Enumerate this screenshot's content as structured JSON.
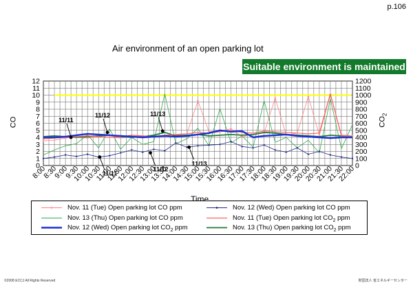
{
  "page_number": "p.106",
  "banner": "Suitable environment is maintained",
  "footer": {
    "copyright": "©2008 ECCJ All Rights Reserved",
    "org": "財団法人 省エネルギーセンター"
  },
  "chart_data": {
    "type": "line",
    "title": "Air environment of an open parking lot",
    "xlabel": "Time",
    "ylabel_left": "CO",
    "ylabel_right": "CO2",
    "ylim_left": [
      0,
      12
    ],
    "ylim_right": [
      0,
      1200
    ],
    "yticks_left": [
      "0",
      "1",
      "2",
      "3",
      "4",
      "5",
      "6",
      "7",
      "8",
      "9",
      "10",
      "11",
      "12"
    ],
    "yticks_right": [
      "0",
      "100",
      "200",
      "300",
      "400",
      "500",
      "600",
      "700",
      "800",
      "900",
      "1000",
      "1100",
      "1200"
    ],
    "categories": [
      "8:00",
      "8:30",
      "9:00",
      "9:30",
      "10:00",
      "10:30",
      "11:00",
      "11:30",
      "12:00",
      "12:30",
      "13:00",
      "13:30",
      "14:00",
      "14:30",
      "15:00",
      "15:30",
      "16:00",
      "16:30",
      "17:00",
      "17:30",
      "18:00",
      "18:30",
      "19:00",
      "19:30",
      "20:00",
      "20:30",
      "21:00",
      "21:30",
      "22:00"
    ],
    "reference_line": {
      "axis": "right",
      "value": 1000,
      "color": "#ffff00"
    },
    "annotations": [
      {
        "text": "11/11",
        "x": 2.5,
        "y": 4.0,
        "pos": "above"
      },
      {
        "text": "11/12",
        "x": 5.8,
        "y": 4.7,
        "pos": "above"
      },
      {
        "text": "11/13",
        "x": 10.8,
        "y": 4.9,
        "pos": "above"
      },
      {
        "text": "11/11",
        "x": 5.1,
        "y": 1.2,
        "pos": "below"
      },
      {
        "text": "11/12",
        "x": 9.7,
        "y": 1.8,
        "pos": "below"
      },
      {
        "text": "11/13",
        "x": 13.2,
        "y": 2.6,
        "pos": "below"
      }
    ],
    "series": [
      {
        "name": "Nov. 11 (Tue) Open parking lot CO ppm",
        "legend_html": "Nov. 11 (Tue) Open parking lot CO ppm",
        "axis": "left",
        "color": "#ff8080",
        "width": 0.8,
        "marker": "plus",
        "legend_col": 0,
        "legend_row": 0,
        "x": [
          0,
          1,
          2,
          3,
          4,
          5,
          6,
          7,
          8,
          9,
          10,
          11,
          12,
          13,
          14,
          15,
          16,
          17,
          18,
          19,
          20,
          21,
          22,
          23,
          24,
          25,
          26,
          27,
          28
        ],
        "values": [
          3.5,
          3.6,
          3.9,
          4.0,
          3.9,
          4.1,
          4.0,
          3.9,
          4.1,
          4.2,
          4.0,
          4.1,
          4.3,
          4.5,
          9.2,
          4.8,
          4.9,
          5.2,
          4.1,
          4.4,
          4.6,
          9.6,
          4.3,
          4.6,
          9.8,
          4.3,
          10.1,
          4.4,
          4.2
        ]
      },
      {
        "name": "Nov. 12 (Wed) Open parking lot CO ppm",
        "legend_html": "Nov. 12 (Wed) Open parking lot CO ppm",
        "axis": "left",
        "color": "#1f2a8a",
        "width": 0.8,
        "marker": "dot",
        "legend_col": 1,
        "legend_row": 0,
        "x": [
          0,
          1,
          2,
          3,
          4,
          5,
          6,
          7,
          8,
          9,
          10,
          11,
          12,
          13,
          14,
          15,
          16,
          17,
          18,
          19,
          20,
          21,
          22,
          23,
          24,
          25,
          26,
          27,
          28
        ],
        "values": [
          1.0,
          1.2,
          1.5,
          1.3,
          1.6,
          1.2,
          1.4,
          1.8,
          2.2,
          1.9,
          2.3,
          2.1,
          3.2,
          2.6,
          2.8,
          2.9,
          3.0,
          3.4,
          2.7,
          2.5,
          2.9,
          2.2,
          1.9,
          2.5,
          1.6,
          2.0,
          1.5,
          1.2,
          1.0
        ]
      },
      {
        "name": "Nov. 13 (Thu) Open parking lot CO ppm",
        "legend_html": "Nov. 13 (Thu) Open parking lot CO ppm",
        "axis": "left",
        "color": "#2ea84a",
        "width": 0.8,
        "marker": "none",
        "legend_col": 0,
        "legend_row": 1,
        "x": [
          0,
          1,
          2,
          3,
          4,
          5,
          6,
          7,
          8,
          9,
          10,
          11,
          12,
          13,
          14,
          15,
          16,
          17,
          18,
          19,
          20,
          21,
          22,
          23,
          24,
          25,
          26,
          27,
          28
        ],
        "values": [
          1.5,
          2.2,
          2.8,
          3.1,
          4.4,
          2.5,
          5.2,
          2.3,
          4.0,
          3.0,
          3.4,
          10.2,
          3.1,
          3.8,
          5.3,
          2.8,
          8.1,
          3.2,
          4.2,
          2.6,
          9.2,
          3.3,
          4.0,
          2.5,
          3.6,
          1.8,
          9.5,
          2.4,
          5.8
        ]
      },
      {
        "name": "Nov. 11 (Tue) Open parking lot CO2 ppm",
        "legend_html": "Nov. 11 (Tue) Open parking lot CO<sub>2</sub> ppm",
        "axis": "right",
        "color": "#ff6060",
        "width": 1.2,
        "marker": "none",
        "legend_col": 1,
        "legend_row": 1,
        "x": [
          0,
          1,
          2,
          3,
          4,
          5,
          6,
          7,
          8,
          9,
          10,
          11,
          12,
          13,
          14,
          15,
          16,
          17,
          18,
          19,
          20,
          21,
          22,
          23,
          24,
          25,
          26,
          27,
          28
        ],
        "values": [
          380,
          390,
          400,
          410,
          420,
          410,
          400,
          410,
          430,
          420,
          410,
          430,
          440,
          450,
          470,
          460,
          480,
          500,
          470,
          460,
          490,
          480,
          470,
          460,
          450,
          460,
          1020,
          420,
          410
        ]
      },
      {
        "name": "Nov. 12 (Wed) Open parking lot CO2 ppm",
        "legend_html": "Nov. 12 (Wed) Open parking lot CO<sub>2</sub> ppm",
        "axis": "right",
        "color": "#1a2fd0",
        "width": 2.4,
        "marker": "none",
        "legend_col": 0,
        "legend_row": 2,
        "x": [
          0,
          1,
          2,
          3,
          4,
          5,
          6,
          7,
          8,
          9,
          10,
          11,
          12,
          13,
          14,
          15,
          16,
          17,
          18,
          19,
          20,
          21,
          22,
          23,
          24,
          25,
          26,
          27,
          28
        ],
        "values": [
          400,
          400,
          410,
          430,
          450,
          440,
          430,
          420,
          410,
          400,
          410,
          420,
          410,
          420,
          440,
          460,
          500,
          480,
          490,
          400,
          420,
          430,
          440,
          420,
          410,
          400,
          390,
          400,
          400
        ]
      },
      {
        "name": "Nov. 13 (Thu) Open parking lot CO2 ppm",
        "legend_html": "Nov. 13 (Thu) Open parking lot CO<sub>2</sub> ppm",
        "axis": "right",
        "color": "#1f7a38",
        "width": 1.8,
        "marker": "none",
        "legend_col": 1,
        "legend_row": 2,
        "x": [
          0,
          1,
          2,
          3,
          4,
          5,
          6,
          7,
          8,
          9,
          10,
          11,
          12,
          13,
          14,
          15,
          16,
          17,
          18,
          19,
          20,
          21,
          22,
          23,
          24,
          25,
          26,
          27,
          28
        ],
        "values": [
          410,
          420,
          410,
          400,
          410,
          420,
          430,
          410,
          400,
          410,
          430,
          470,
          420,
          430,
          440,
          420,
          430,
          440,
          430,
          440,
          470,
          460,
          440,
          430,
          420,
          410,
          430,
          420,
          410
        ]
      }
    ]
  }
}
